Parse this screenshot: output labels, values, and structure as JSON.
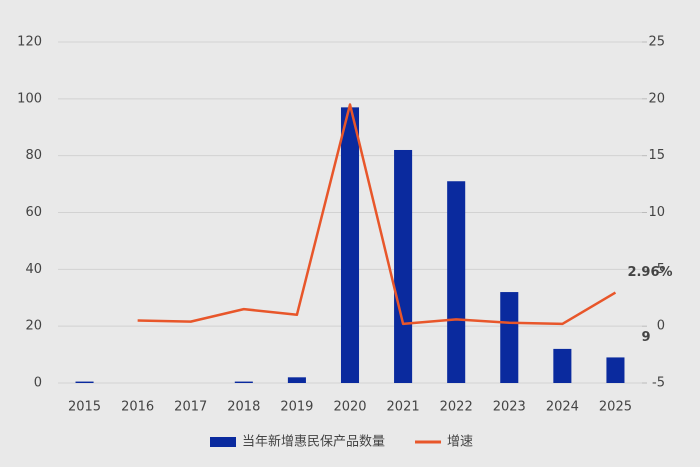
{
  "chart_data": {
    "type": "bar-line",
    "categories": [
      "2015",
      "2016",
      "2017",
      "2018",
      "2019",
      "2020",
      "2021",
      "2022",
      "2023",
      "2024",
      "2025"
    ],
    "series": [
      {
        "name": "当年新增惠民保产品数量",
        "type": "bar",
        "color": "#0a2a9e",
        "values": [
          0.5,
          0,
          0,
          0.5,
          2,
          97,
          82,
          71,
          32,
          12,
          9
        ]
      },
      {
        "name": "增速",
        "type": "line",
        "axis": "y2",
        "color": "#e8562a",
        "values": [
          null,
          0.5,
          0.4,
          1.5,
          1,
          19.5,
          0.2,
          0.6,
          0.3,
          0.2,
          2.96
        ],
        "value_labels": [
          null,
          null,
          null,
          null,
          null,
          null,
          null,
          null,
          null,
          null,
          "2.96%"
        ]
      }
    ],
    "ylim": [
      0,
      120
    ],
    "yticks": [
      0,
      20,
      40,
      60,
      80,
      100,
      120
    ],
    "y2lim": [
      -5,
      25
    ],
    "y2ticks": [
      -5,
      0,
      5,
      10,
      15,
      20,
      25
    ],
    "grid": true,
    "legend": "bottom"
  }
}
